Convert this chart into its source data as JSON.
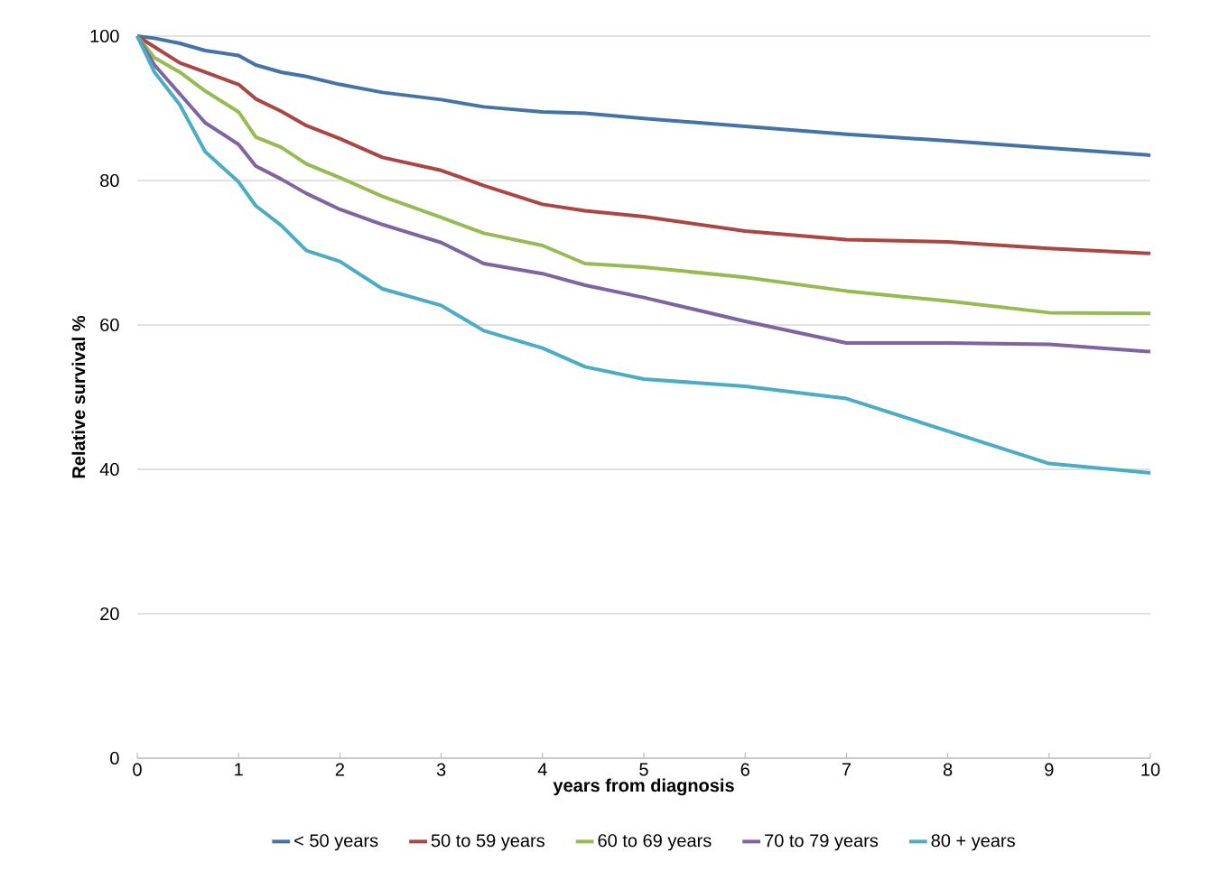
{
  "chart_data": {
    "type": "line",
    "xlabel": "years from diagnosis",
    "ylabel": "Relative survival %",
    "x": [
      0,
      0.17,
      0.42,
      0.67,
      1,
      1.17,
      1.42,
      1.67,
      2,
      2.42,
      3,
      3.42,
      4,
      4.42,
      5,
      6,
      7,
      8,
      9,
      10
    ],
    "xlim": [
      0,
      10
    ],
    "xticks": [
      0,
      1,
      2,
      3,
      4,
      5,
      6,
      7,
      8,
      9,
      10
    ],
    "ylim": [
      0,
      100
    ],
    "yticks": [
      0,
      20,
      40,
      60,
      80,
      100
    ],
    "grid": "y",
    "legend": "bottom",
    "marker": "none",
    "line_style": "solid",
    "series": [
      {
        "name": "< 50 years",
        "color": "#4572a7",
        "values": [
          100,
          99.7,
          99,
          98,
          97.3,
          96,
          95,
          94.4,
          93.3,
          92.2,
          91.2,
          90.2,
          89.5,
          89.3,
          88.6,
          87.5,
          86.4,
          85.5,
          84.5,
          83.5
        ]
      },
      {
        "name": "50 to 59 years",
        "color": "#aa4643",
        "values": [
          100,
          98.5,
          96.3,
          95,
          93.3,
          91.3,
          89.6,
          87.6,
          85.8,
          83.2,
          81.4,
          79.3,
          76.7,
          75.8,
          75,
          73,
          71.8,
          71.5,
          70.6,
          69.9
        ]
      },
      {
        "name": "60 to 69 years",
        "color": "#96bb53",
        "values": [
          100,
          97,
          95,
          92.4,
          89.5,
          86,
          84.6,
          82.3,
          80.4,
          77.8,
          74.9,
          72.7,
          71,
          68.5,
          68,
          66.6,
          64.7,
          63.3,
          61.7,
          61.6
        ]
      },
      {
        "name": "70 to 79 years",
        "color": "#8064a2",
        "values": [
          100,
          96,
          92,
          88,
          85,
          82,
          80.2,
          78.2,
          76,
          73.9,
          71.4,
          68.5,
          67.1,
          65.5,
          63.8,
          60.5,
          57.5,
          57.5,
          57.3,
          56.3
        ]
      },
      {
        "name": "80 + years",
        "color": "#4bacc6",
        "values": [
          100,
          95,
          90.5,
          84,
          79.8,
          76.5,
          73.8,
          70.3,
          68.8,
          65,
          62.7,
          59.2,
          56.8,
          54.2,
          52.5,
          51.5,
          49.8,
          45.3,
          40.8,
          39.5
        ]
      }
    ]
  }
}
